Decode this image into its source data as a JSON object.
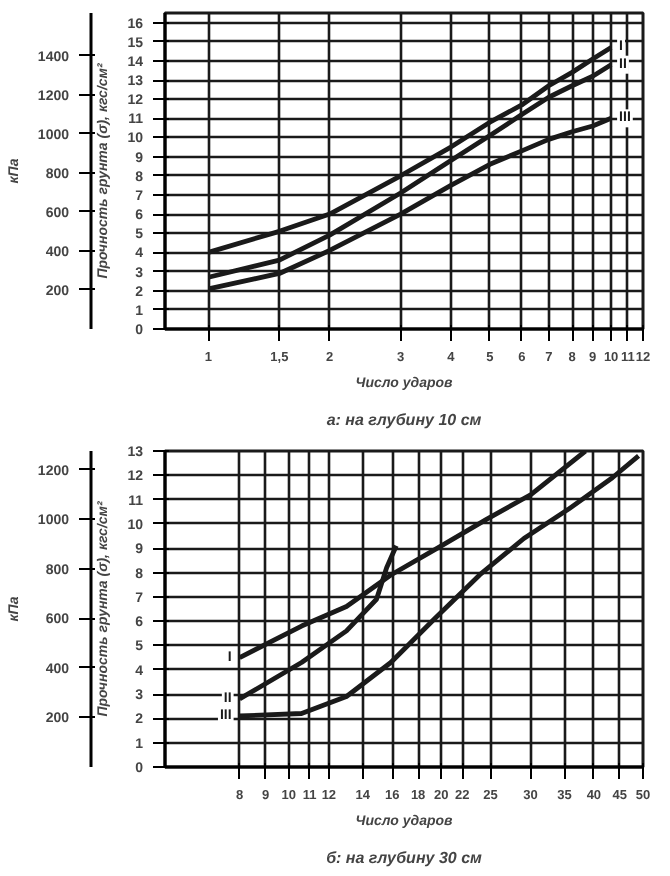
{
  "chart_data": [
    {
      "type": "line",
      "title": "а: на глубину 10 см",
      "xlabel": "Число ударов",
      "ylabel": "Прочность грунта (σ), кгс/см²",
      "y2label": "кПа",
      "log": "x",
      "grid": true,
      "marker": "none",
      "line_style": "solid",
      "xlim": [
        0.78,
        12
      ],
      "xticks": [
        1,
        {
          "value": 1.5,
          "label": "1,5"
        },
        2,
        3,
        4,
        5,
        6,
        7,
        8,
        9,
        10,
        11,
        12
      ],
      "ylim": [
        0,
        16.5
      ],
      "yticks": [
        0,
        1,
        2,
        3,
        4,
        5,
        6,
        7,
        8,
        9,
        10,
        11,
        12,
        13,
        14,
        15,
        16
      ],
      "y2lim": [
        0,
        1620
      ],
      "y2ticks": [
        200,
        400,
        600,
        800,
        1000,
        1200,
        1400
      ],
      "x": [
        1,
        1.5,
        2,
        3,
        4,
        5,
        6,
        7,
        8,
        9,
        10
      ],
      "series": [
        {
          "name": "I",
          "color": "#1a1a1a",
          "values": [
            4.0,
            5.1,
            6.0,
            8.0,
            9.5,
            10.8,
            11.7,
            12.7,
            13.4,
            14.1,
            14.7
          ]
        },
        {
          "name": "II",
          "color": "#1a1a1a",
          "values": [
            2.7,
            3.6,
            4.9,
            7.1,
            8.8,
            10.1,
            11.2,
            12.1,
            12.7,
            13.2,
            13.8
          ]
        },
        {
          "name": "III",
          "color": "#1a1a1a",
          "values": [
            2.1,
            2.9,
            4.1,
            6.0,
            7.5,
            8.6,
            9.3,
            9.9,
            10.3,
            10.6,
            11.0
          ]
        }
      ]
    },
    {
      "type": "line",
      "title": "б: на глубину 30 см",
      "xlabel": "Число ударов",
      "ylabel": "Прочность грунта (σ), кгс/см²",
      "y2label": "кПа",
      "log": "x",
      "grid": true,
      "marker": "none",
      "line_style": "solid",
      "xlim": [
        5.7,
        50
      ],
      "xticks": [
        8,
        9,
        10,
        11,
        12,
        14,
        16,
        18,
        20,
        22,
        25,
        30,
        35,
        40,
        45,
        50
      ],
      "ylim": [
        0,
        13
      ],
      "yticks": [
        0,
        1,
        2,
        3,
        4,
        5,
        6,
        7,
        8,
        9,
        10,
        11,
        12,
        13
      ],
      "y2lim": [
        0,
        1275
      ],
      "y2ticks": [
        200,
        400,
        600,
        800,
        1000,
        1200
      ],
      "series": [
        {
          "name": "I",
          "color": "#1a1a1a",
          "x": [
            8,
            10.6,
            13,
            15.9,
            20,
            24.6,
            30,
            38.5
          ],
          "values": [
            4.5,
            5.8,
            6.6,
            7.9,
            9.1,
            10.2,
            11.2,
            13.0
          ]
        },
        {
          "name": "II",
          "color": "#1a1a1a",
          "x": [
            8,
            10.6,
            13,
            14.9,
            15.6,
            16.3
          ],
          "values": [
            2.8,
            4.3,
            5.6,
            6.9,
            8.2,
            9.1
          ]
        },
        {
          "name": "III",
          "color": "#1a1a1a",
          "x": [
            8,
            10.6,
            13,
            15.9,
            19.4,
            23.8,
            29.1,
            35.6,
            43.5,
            49
          ],
          "values": [
            2.1,
            2.2,
            2.9,
            4.3,
            6.1,
            7.9,
            9.4,
            10.6,
            11.9,
            12.8
          ]
        }
      ]
    }
  ]
}
